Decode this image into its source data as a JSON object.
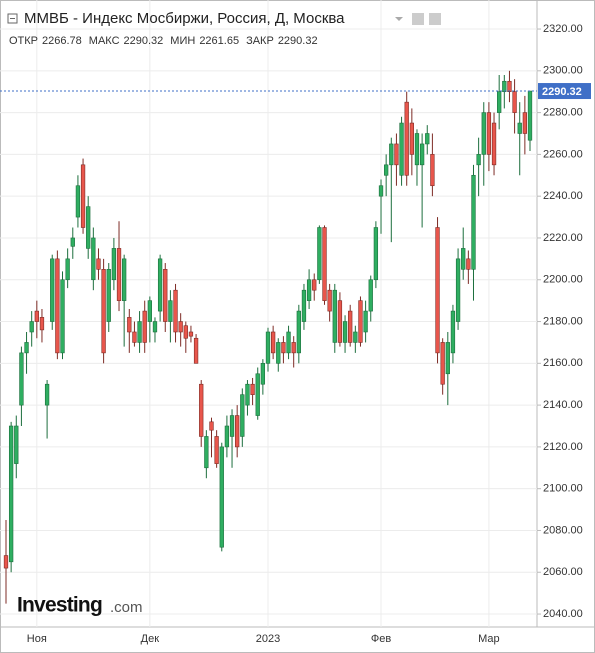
{
  "chart_data": {
    "type": "candlestick",
    "title": "ММВБ - Индекс Мосбиржи, Россия, Д, Москва",
    "summary_labels": [
      "ОТКР",
      "МАКС",
      "МИН",
      "ЗАКР"
    ],
    "up_color": "#2fae61",
    "down_color": "#e8564c",
    "last_price_color": "#3f6fc7",
    "grid": true,
    "categories": [
      null,
      null,
      null,
      null,
      null,
      null,
      "Ноя",
      null,
      null,
      null,
      null,
      null,
      null,
      null,
      null,
      null,
      null,
      null,
      null,
      null,
      null,
      null,
      null,
      null,
      null,
      null,
      null,
      null,
      "Дек",
      null,
      null,
      null,
      null,
      null,
      null,
      null,
      null,
      null,
      null,
      null,
      null,
      null,
      null,
      null,
      null,
      null,
      null,
      null,
      null,
      null,
      null,
      "2023",
      null,
      null,
      null,
      null,
      null,
      null,
      null,
      null,
      null,
      null,
      null,
      null,
      null,
      null,
      null,
      null,
      null,
      null,
      null,
      null,
      null,
      "Фев",
      null,
      null,
      null,
      null,
      null,
      null,
      null,
      null,
      null,
      null,
      null,
      null,
      null,
      null,
      null,
      null,
      null,
      null,
      null,
      null,
      "Мар",
      null,
      null,
      null,
      null,
      null,
      null,
      null,
      null
    ],
    "open": [
      2068,
      2065,
      2112,
      2140,
      2165,
      2175,
      2185,
      2182,
      2140,
      2180,
      2210,
      2165,
      2200,
      2216,
      2230,
      2255,
      2215,
      2200,
      2210,
      2205,
      2180,
      2200,
      2215,
      2190,
      2182,
      2175,
      2170,
      2185,
      2180,
      2175,
      2185,
      2205,
      2180,
      2195,
      2180,
      2178,
      2175,
      2172,
      2150,
      2110,
      2132,
      2125,
      2072,
      2120,
      2125,
      2135,
      2125,
      2140,
      2150,
      2135,
      2150,
      2160,
      2175,
      2160,
      2170,
      2165,
      2170,
      2165,
      2180,
      2190,
      2200,
      2200,
      2225,
      2195,
      2170,
      2190,
      2170,
      2185,
      2170,
      2190,
      2175,
      2185,
      2200,
      2240,
      2250,
      2255,
      2265,
      2250,
      2285,
      2275,
      2255,
      2255,
      2265,
      2260,
      2225,
      2170,
      2155,
      2165,
      2180,
      2205,
      2210,
      2205,
      2255,
      2260,
      2280,
      2275,
      2280,
      2290,
      2295,
      2290,
      2270,
      2280,
      2266.78
    ],
    "high": [
      2085,
      2132,
      2135,
      2168,
      2175,
      2185,
      2190,
      2186,
      2152,
      2212,
      2214,
      2204,
      2215,
      2225,
      2250,
      2258,
      2240,
      2225,
      2215,
      2210,
      2208,
      2220,
      2228,
      2212,
      2186,
      2180,
      2185,
      2190,
      2192,
      2182,
      2212,
      2208,
      2195,
      2198,
      2184,
      2180,
      2178,
      2174,
      2152,
      2128,
      2134,
      2128,
      2122,
      2135,
      2138,
      2140,
      2148,
      2152,
      2153,
      2158,
      2162,
      2177,
      2178,
      2172,
      2173,
      2178,
      2173,
      2188,
      2198,
      2205,
      2203,
      2226,
      2226,
      2198,
      2198,
      2194,
      2183,
      2188,
      2178,
      2192,
      2190,
      2202,
      2228,
      2248,
      2260,
      2268,
      2270,
      2278,
      2290,
      2282,
      2272,
      2270,
      2274,
      2270,
      2230,
      2172,
      2175,
      2188,
      2215,
      2225,
      2214,
      2255,
      2268,
      2285,
      2285,
      2280,
      2298,
      2298,
      2300,
      2296,
      2285,
      2288,
      2290.32
    ],
    "low": [
      2045,
      2060,
      2105,
      2130,
      2155,
      2168,
      2172,
      2170,
      2124,
      2176,
      2162,
      2162,
      2196,
      2210,
      2225,
      2222,
      2210,
      2195,
      2200,
      2160,
      2175,
      2195,
      2185,
      2168,
      2165,
      2168,
      2165,
      2165,
      2170,
      2170,
      2180,
      2175,
      2170,
      2170,
      2168,
      2165,
      2170,
      2160,
      2120,
      2105,
      2115,
      2110,
      2070,
      2115,
      2110,
      2115,
      2120,
      2135,
      2140,
      2133,
      2145,
      2156,
      2162,
      2156,
      2160,
      2162,
      2158,
      2160,
      2176,
      2186,
      2190,
      2198,
      2188,
      2180,
      2165,
      2168,
      2165,
      2168,
      2165,
      2168,
      2170,
      2180,
      2196,
      2222,
      2240,
      2218,
      2245,
      2245,
      2245,
      2250,
      2245,
      2225,
      2260,
      2240,
      2160,
      2145,
      2140,
      2160,
      2176,
      2200,
      2198,
      2190,
      2240,
      2245,
      2252,
      2250,
      2272,
      2282,
      2285,
      2270,
      2250,
      2260,
      2261.65
    ],
    "close": [
      2062,
      2130,
      2130,
      2165,
      2170,
      2180,
      2180,
      2176,
      2150,
      2210,
      2165,
      2200,
      2210,
      2220,
      2245,
      2225,
      2235,
      2220,
      2205,
      2165,
      2205,
      2215,
      2190,
      2210,
      2175,
      2170,
      2180,
      2170,
      2190,
      2180,
      2210,
      2180,
      2190,
      2175,
      2175,
      2172,
      2173,
      2160,
      2125,
      2125,
      2128,
      2112,
      2120,
      2130,
      2135,
      2120,
      2145,
      2150,
      2145,
      2155,
      2160,
      2175,
      2165,
      2170,
      2165,
      2175,
      2165,
      2185,
      2195,
      2200,
      2195,
      2225,
      2190,
      2185,
      2195,
      2170,
      2180,
      2170,
      2175,
      2170,
      2185,
      2200,
      2225,
      2245,
      2255,
      2265,
      2255,
      2275,
      2250,
      2260,
      2270,
      2265,
      2270,
      2245,
      2165,
      2150,
      2170,
      2185,
      2210,
      2215,
      2205,
      2250,
      2260,
      2280,
      2260,
      2255,
      2290,
      2295,
      2290,
      2280,
      2275,
      2270,
      2290.32
    ],
    "ylim": [
      2033.8,
      2331.5
    ],
    "yticks": [
      {
        "value": 2040,
        "label": "2040.00"
      },
      {
        "value": 2060,
        "label": "2060.00"
      },
      {
        "value": 2080,
        "label": "2080.00"
      },
      {
        "value": 2100,
        "label": "2100.00"
      },
      {
        "value": 2120,
        "label": "2120.00"
      },
      {
        "value": 2140,
        "label": "2140.00"
      },
      {
        "value": 2160,
        "label": "2160.00"
      },
      {
        "value": 2180,
        "label": "2180.00"
      },
      {
        "value": 2200,
        "label": "2200.00"
      },
      {
        "value": 2220,
        "label": "2220.00"
      },
      {
        "value": 2240,
        "label": "2240.00"
      },
      {
        "value": 2260,
        "label": "2260.00"
      },
      {
        "value": 2280,
        "label": "2280.00"
      },
      {
        "value": 2300,
        "label": "2300.00"
      },
      {
        "value": 2320,
        "label": "2320.00"
      }
    ]
  },
  "brand": {
    "name": "Investing",
    "suffix": ".com"
  }
}
